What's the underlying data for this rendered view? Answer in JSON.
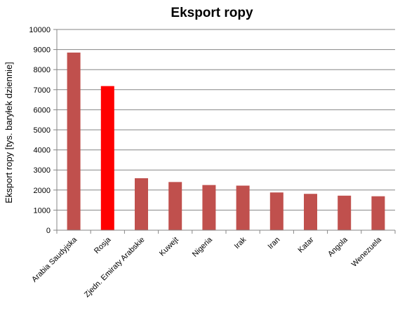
{
  "chart_data": {
    "type": "bar",
    "title": "Eksport ropy",
    "xlabel": "",
    "ylabel": "Eksport ropy  [tys. baryłek dziennie]",
    "ylim": [
      0,
      10000
    ],
    "yticks": [
      0,
      1000,
      2000,
      3000,
      4000,
      5000,
      6000,
      7000,
      8000,
      9000,
      10000
    ],
    "grid": true,
    "categories": [
      "Arabia Saudyjska",
      "Rosja",
      "Zjedn. Emiraty Arabskie",
      "Kuwejt",
      "Nigeria",
      "Irak",
      "Iran",
      "Katar",
      "Angola",
      "Wenezuela"
    ],
    "values": [
      8850,
      7180,
      2590,
      2400,
      2250,
      2220,
      1880,
      1810,
      1720,
      1690
    ],
    "bar_colors": [
      "#c0504d",
      "#ff0000",
      "#c0504d",
      "#c0504d",
      "#c0504d",
      "#c0504d",
      "#c0504d",
      "#c0504d",
      "#c0504d",
      "#c0504d"
    ]
  }
}
